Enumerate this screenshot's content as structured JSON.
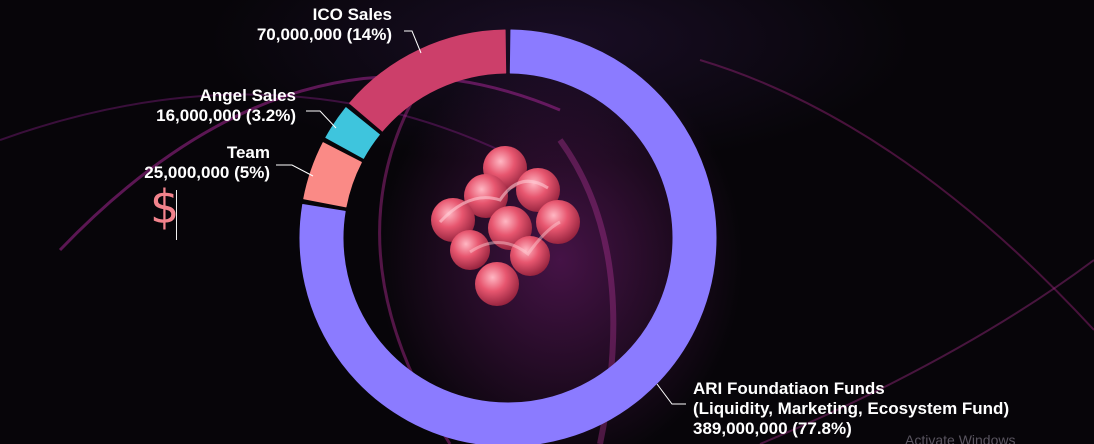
{
  "chart_data": {
    "type": "pie",
    "categories": [
      "ARI Foundatiaon Funds (Liquidity, Marketing, Ecosystem Fund)",
      "Team",
      "Angel Sales",
      "ICO Sales"
    ],
    "values": [
      389000000,
      25000000,
      16000000,
      70000000
    ],
    "percents": [
      77.8,
      5,
      3.2,
      14
    ],
    "colors": [
      "#8b7bff",
      "#fa8a86",
      "#3ec5dd",
      "#cc3f6a"
    ]
  },
  "labels": {
    "ico": {
      "name": "ICO Sales",
      "value": "70,000,000 (14%)"
    },
    "angel": {
      "name": "Angel Sales",
      "value": "16,000,000 (3.2%)"
    },
    "team": {
      "name": "Team",
      "value": "25,000,000 (5%)"
    },
    "ari": {
      "name": "ARI Foundatiaon Funds",
      "detail": "(Liquidity, Marketing, Ecosystem Fund)",
      "value": "389,000,000 (77.8%)"
    }
  },
  "overlay": {
    "dollar_glyph": "$",
    "watermark": "Activate Windows"
  },
  "icons": {
    "center": "ari-logo-icon"
  }
}
